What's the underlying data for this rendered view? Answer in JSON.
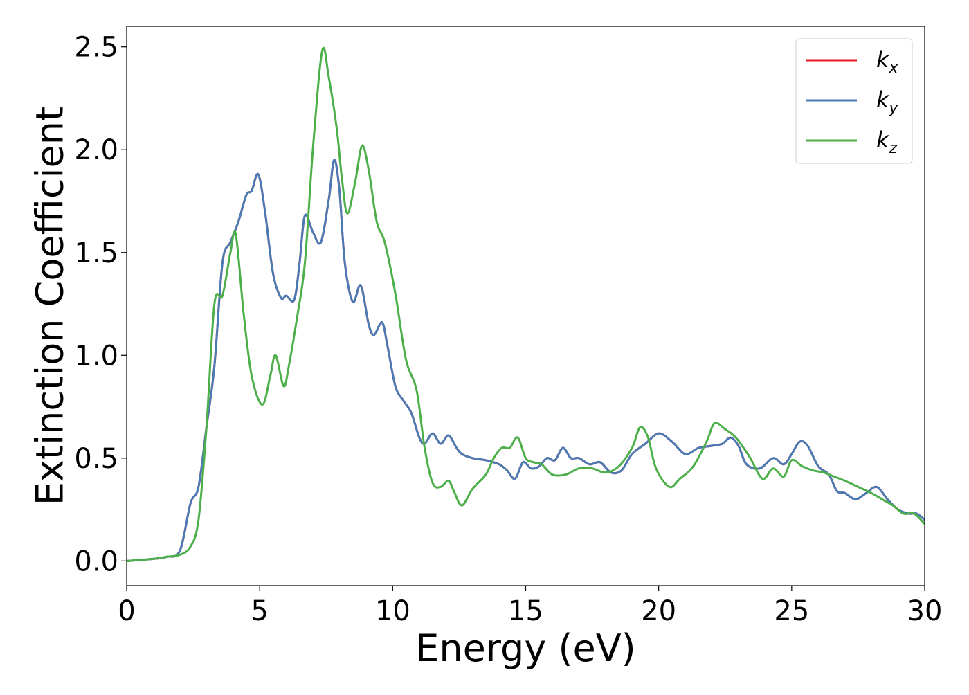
{
  "chart_data": {
    "type": "line",
    "title": "",
    "xlabel": "Energy (eV)",
    "ylabel": "Extinction Coefficient",
    "xlim": [
      0,
      30
    ],
    "ylim": [
      -0.12,
      2.6
    ],
    "x_ticks": [
      "0",
      "5",
      "10",
      "15",
      "20",
      "25",
      "30"
    ],
    "x_tick_values": [
      0,
      5,
      10,
      15,
      20,
      25,
      30
    ],
    "y_ticks": [
      "0.0",
      "0.5",
      "1.0",
      "1.5",
      "2.0",
      "2.5"
    ],
    "y_tick_values": [
      0.0,
      0.5,
      1.0,
      1.5,
      2.0,
      2.5
    ],
    "grid": false,
    "legend_position": "top-right",
    "series": [
      {
        "name_base": "k",
        "name_sub": "x",
        "color": "#e41a1c",
        "points": [
          [
            0,
            0
          ],
          [
            1,
            0.01
          ],
          [
            1.5,
            0.02
          ],
          [
            2,
            0.05
          ],
          [
            2.4,
            0.28
          ],
          [
            2.7,
            0.36
          ],
          [
            3,
            0.65
          ],
          [
            3.3,
            0.95
          ],
          [
            3.6,
            1.45
          ],
          [
            3.9,
            1.55
          ],
          [
            4.2,
            1.65
          ],
          [
            4.5,
            1.78
          ],
          [
            4.7,
            1.8
          ],
          [
            4.95,
            1.88
          ],
          [
            5.2,
            1.7
          ],
          [
            5.5,
            1.4
          ],
          [
            5.8,
            1.28
          ],
          [
            6,
            1.29
          ],
          [
            6.3,
            1.27
          ],
          [
            6.5,
            1.45
          ],
          [
            6.7,
            1.68
          ],
          [
            7,
            1.6
          ],
          [
            7.3,
            1.55
          ],
          [
            7.6,
            1.76
          ],
          [
            7.8,
            1.95
          ],
          [
            8,
            1.8
          ],
          [
            8.2,
            1.45
          ],
          [
            8.5,
            1.26
          ],
          [
            8.8,
            1.34
          ],
          [
            9.1,
            1.15
          ],
          [
            9.3,
            1.1
          ],
          [
            9.6,
            1.16
          ],
          [
            9.8,
            1.05
          ],
          [
            10.1,
            0.85
          ],
          [
            10.4,
            0.78
          ],
          [
            10.7,
            0.72
          ],
          [
            11,
            0.6
          ],
          [
            11.2,
            0.57
          ],
          [
            11.5,
            0.62
          ],
          [
            11.8,
            0.57
          ],
          [
            12.1,
            0.61
          ],
          [
            12.4,
            0.55
          ],
          [
            12.6,
            0.52
          ],
          [
            13,
            0.5
          ],
          [
            13.5,
            0.49
          ],
          [
            14,
            0.47
          ],
          [
            14.3,
            0.44
          ],
          [
            14.6,
            0.4
          ],
          [
            14.9,
            0.48
          ],
          [
            15.2,
            0.45
          ],
          [
            15.5,
            0.46
          ],
          [
            15.8,
            0.5
          ],
          [
            16.1,
            0.49
          ],
          [
            16.4,
            0.55
          ],
          [
            16.7,
            0.5
          ],
          [
            17,
            0.5
          ],
          [
            17.4,
            0.47
          ],
          [
            17.8,
            0.48
          ],
          [
            18.2,
            0.43
          ],
          [
            18.6,
            0.44
          ],
          [
            19,
            0.52
          ],
          [
            19.5,
            0.57
          ],
          [
            20,
            0.62
          ],
          [
            20.5,
            0.58
          ],
          [
            21,
            0.52
          ],
          [
            21.5,
            0.55
          ],
          [
            22,
            0.56
          ],
          [
            22.4,
            0.57
          ],
          [
            22.7,
            0.6
          ],
          [
            23,
            0.56
          ],
          [
            23.3,
            0.47
          ],
          [
            23.8,
            0.45
          ],
          [
            24.3,
            0.5
          ],
          [
            24.7,
            0.47
          ],
          [
            25,
            0.52
          ],
          [
            25.3,
            0.58
          ],
          [
            25.6,
            0.56
          ],
          [
            26,
            0.46
          ],
          [
            26.4,
            0.42
          ],
          [
            26.7,
            0.34
          ],
          [
            27,
            0.33
          ],
          [
            27.4,
            0.3
          ],
          [
            27.8,
            0.33
          ],
          [
            28.2,
            0.36
          ],
          [
            28.6,
            0.3
          ],
          [
            29,
            0.25
          ],
          [
            29.4,
            0.23
          ],
          [
            29.7,
            0.23
          ],
          [
            30,
            0.2
          ]
        ]
      },
      {
        "name_base": "k",
        "name_sub": "y",
        "color": "#4a7bb4",
        "points": [
          [
            0,
            0
          ],
          [
            1,
            0.01
          ],
          [
            1.5,
            0.02
          ],
          [
            2,
            0.05
          ],
          [
            2.4,
            0.28
          ],
          [
            2.7,
            0.36
          ],
          [
            3,
            0.65
          ],
          [
            3.3,
            0.95
          ],
          [
            3.6,
            1.45
          ],
          [
            3.9,
            1.55
          ],
          [
            4.2,
            1.65
          ],
          [
            4.5,
            1.78
          ],
          [
            4.7,
            1.8
          ],
          [
            4.95,
            1.88
          ],
          [
            5.2,
            1.7
          ],
          [
            5.5,
            1.4
          ],
          [
            5.8,
            1.28
          ],
          [
            6,
            1.29
          ],
          [
            6.3,
            1.27
          ],
          [
            6.5,
            1.45
          ],
          [
            6.7,
            1.68
          ],
          [
            7,
            1.6
          ],
          [
            7.3,
            1.55
          ],
          [
            7.6,
            1.76
          ],
          [
            7.8,
            1.95
          ],
          [
            8,
            1.8
          ],
          [
            8.2,
            1.45
          ],
          [
            8.5,
            1.26
          ],
          [
            8.8,
            1.34
          ],
          [
            9.1,
            1.15
          ],
          [
            9.3,
            1.1
          ],
          [
            9.6,
            1.16
          ],
          [
            9.8,
            1.05
          ],
          [
            10.1,
            0.85
          ],
          [
            10.4,
            0.78
          ],
          [
            10.7,
            0.72
          ],
          [
            11,
            0.6
          ],
          [
            11.2,
            0.57
          ],
          [
            11.5,
            0.62
          ],
          [
            11.8,
            0.57
          ],
          [
            12.1,
            0.61
          ],
          [
            12.4,
            0.55
          ],
          [
            12.6,
            0.52
          ],
          [
            13,
            0.5
          ],
          [
            13.5,
            0.49
          ],
          [
            14,
            0.47
          ],
          [
            14.3,
            0.44
          ],
          [
            14.6,
            0.4
          ],
          [
            14.9,
            0.48
          ],
          [
            15.2,
            0.45
          ],
          [
            15.5,
            0.46
          ],
          [
            15.8,
            0.5
          ],
          [
            16.1,
            0.49
          ],
          [
            16.4,
            0.55
          ],
          [
            16.7,
            0.5
          ],
          [
            17,
            0.5
          ],
          [
            17.4,
            0.47
          ],
          [
            17.8,
            0.48
          ],
          [
            18.2,
            0.43
          ],
          [
            18.6,
            0.44
          ],
          [
            19,
            0.52
          ],
          [
            19.5,
            0.57
          ],
          [
            20,
            0.62
          ],
          [
            20.5,
            0.58
          ],
          [
            21,
            0.52
          ],
          [
            21.5,
            0.55
          ],
          [
            22,
            0.56
          ],
          [
            22.4,
            0.57
          ],
          [
            22.7,
            0.6
          ],
          [
            23,
            0.56
          ],
          [
            23.3,
            0.47
          ],
          [
            23.8,
            0.45
          ],
          [
            24.3,
            0.5
          ],
          [
            24.7,
            0.47
          ],
          [
            25,
            0.52
          ],
          [
            25.3,
            0.58
          ],
          [
            25.6,
            0.56
          ],
          [
            26,
            0.46
          ],
          [
            26.4,
            0.42
          ],
          [
            26.7,
            0.34
          ],
          [
            27,
            0.33
          ],
          [
            27.4,
            0.3
          ],
          [
            27.8,
            0.33
          ],
          [
            28.2,
            0.36
          ],
          [
            28.6,
            0.3
          ],
          [
            29,
            0.25
          ],
          [
            29.4,
            0.23
          ],
          [
            29.7,
            0.23
          ],
          [
            30,
            0.2
          ]
        ]
      },
      {
        "name_base": "k",
        "name_sub": "z",
        "color": "#4daf4a",
        "points": [
          [
            0,
            0
          ],
          [
            1,
            0.01
          ],
          [
            1.5,
            0.02
          ],
          [
            2,
            0.03
          ],
          [
            2.4,
            0.07
          ],
          [
            2.7,
            0.2
          ],
          [
            3,
            0.65
          ],
          [
            3.3,
            1.25
          ],
          [
            3.6,
            1.29
          ],
          [
            3.9,
            1.5
          ],
          [
            4.1,
            1.59
          ],
          [
            4.4,
            1.2
          ],
          [
            4.7,
            0.9
          ],
          [
            5.1,
            0.76
          ],
          [
            5.4,
            0.9
          ],
          [
            5.6,
            1.0
          ],
          [
            5.9,
            0.85
          ],
          [
            6.1,
            0.95
          ],
          [
            6.4,
            1.18
          ],
          [
            6.7,
            1.45
          ],
          [
            7,
            2.0
          ],
          [
            7.35,
            2.48
          ],
          [
            7.6,
            2.35
          ],
          [
            7.9,
            2.1
          ],
          [
            8.1,
            1.85
          ],
          [
            8.3,
            1.69
          ],
          [
            8.6,
            1.85
          ],
          [
            8.85,
            2.02
          ],
          [
            9.1,
            1.9
          ],
          [
            9.4,
            1.65
          ],
          [
            9.7,
            1.55
          ],
          [
            10.1,
            1.3
          ],
          [
            10.5,
            0.98
          ],
          [
            10.9,
            0.83
          ],
          [
            11.2,
            0.55
          ],
          [
            11.5,
            0.38
          ],
          [
            11.8,
            0.36
          ],
          [
            12.1,
            0.39
          ],
          [
            12.3,
            0.34
          ],
          [
            12.6,
            0.27
          ],
          [
            13,
            0.35
          ],
          [
            13.5,
            0.42
          ],
          [
            13.8,
            0.5
          ],
          [
            14.1,
            0.55
          ],
          [
            14.4,
            0.55
          ],
          [
            14.7,
            0.6
          ],
          [
            15,
            0.5
          ],
          [
            15.3,
            0.48
          ],
          [
            15.6,
            0.47
          ],
          [
            16,
            0.42
          ],
          [
            16.5,
            0.42
          ],
          [
            17,
            0.45
          ],
          [
            17.5,
            0.45
          ],
          [
            18,
            0.43
          ],
          [
            18.5,
            0.46
          ],
          [
            19,
            0.55
          ],
          [
            19.3,
            0.65
          ],
          [
            19.6,
            0.6
          ],
          [
            19.9,
            0.45
          ],
          [
            20.4,
            0.36
          ],
          [
            20.8,
            0.4
          ],
          [
            21.3,
            0.46
          ],
          [
            21.8,
            0.58
          ],
          [
            22.1,
            0.67
          ],
          [
            22.5,
            0.64
          ],
          [
            22.9,
            0.6
          ],
          [
            23.4,
            0.51
          ],
          [
            23.9,
            0.4
          ],
          [
            24.3,
            0.45
          ],
          [
            24.7,
            0.41
          ],
          [
            25,
            0.49
          ],
          [
            25.4,
            0.46
          ],
          [
            25.8,
            0.44
          ],
          [
            26.2,
            0.43
          ],
          [
            26.6,
            0.41
          ],
          [
            27,
            0.39
          ],
          [
            27.5,
            0.36
          ],
          [
            28,
            0.33
          ],
          [
            28.4,
            0.3
          ],
          [
            28.8,
            0.27
          ],
          [
            29.2,
            0.23
          ],
          [
            29.6,
            0.23
          ],
          [
            30,
            0.18
          ]
        ]
      }
    ]
  }
}
